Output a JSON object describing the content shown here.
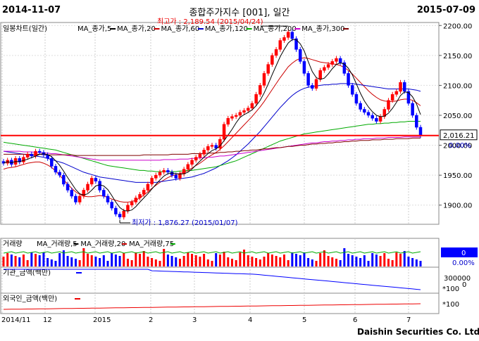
{
  "header": {
    "start_date": "2014-11-07",
    "title": "종합주가지수 [001], 일간",
    "end_date": "2015-07-09"
  },
  "footer": {
    "brand": "Daishin Securities Co. Ltd."
  },
  "colors": {
    "up": "#ff0000",
    "down": "#0000ff",
    "ma5": "#000000",
    "ma20": "#cc0000",
    "ma60": "#0000cc",
    "ma120": "#00aa00",
    "ma200": "#cc00cc",
    "ma300": "#800000",
    "support_line": "#ff0000"
  },
  "chart_data": [
    {
      "type": "candlestick",
      "title": "일봉차트(일간)",
      "legend": [
        "MA_종가,5",
        "MA_종가,20",
        "MA_종가,60",
        "MA_종가,120",
        "MA_종가,200",
        "MA_종가,300"
      ],
      "y_ticks": [
        "2200.00",
        "2150.00",
        "2100.00",
        "2050.00",
        "2000.00",
        "1950.00",
        "1900.00"
      ],
      "ylim": [
        1868,
        2205
      ],
      "current_value": "2,016.21",
      "current_change": "0.00%",
      "support_level": 2016.21,
      "high_annotation": "최고가 : 2,189.54 (2015/04/24)",
      "low_annotation": "최저가 : 1,876.27 (2015/01/07)",
      "x_ticks": [
        "2014/11",
        "12",
        "2015",
        "2",
        "3",
        "4",
        "5",
        "6",
        "7"
      ],
      "series_close": [
        1970,
        1975,
        1968,
        1978,
        1972,
        1980,
        1985,
        1982,
        1990,
        1988,
        1984,
        1978,
        1965,
        1955,
        1950,
        1935,
        1925,
        1915,
        1905,
        1915,
        1925,
        1935,
        1945,
        1940,
        1925,
        1915,
        1905,
        1895,
        1885,
        1880,
        1890,
        1900,
        1905,
        1912,
        1918,
        1925,
        1935,
        1945,
        1950,
        1955,
        1958,
        1955,
        1950,
        1945,
        1952,
        1960,
        1968,
        1975,
        1980,
        1985,
        1992,
        1998,
        2000,
        1995,
        2010,
        2035,
        2045,
        2048,
        2050,
        2055,
        2058,
        2062,
        2070,
        2085,
        2100,
        2120,
        2135,
        2150,
        2160,
        2175,
        2180,
        2189,
        2178,
        2160,
        2140,
        2120,
        2100,
        2095,
        2110,
        2125,
        2130,
        2135,
        2140,
        2145,
        2138,
        2120,
        2100,
        2085,
        2070,
        2060,
        2055,
        2050,
        2045,
        2040,
        2048,
        2060,
        2075,
        2085,
        2090,
        2105,
        2090,
        2070,
        2050,
        2030,
        2016.21
      ],
      "ma_series": {
        "ma20": [
          1960,
          1962,
          1963,
          1964,
          1966,
          1968,
          1970,
          1971,
          1972,
          1972,
          1970,
          1967,
          1963,
          1957,
          1950,
          1942,
          1935,
          1928,
          1922,
          1918,
          1915,
          1914,
          1914,
          1915,
          1916,
          1915,
          1913,
          1910,
          1908,
          1906,
          1905,
          1905,
          1906,
          1908,
          1912,
          1917,
          1922,
          1928,
          1933,
          1938,
          1942,
          1946,
          1949,
          1951,
          1953,
          1955,
          1958,
          1962,
          1966,
          1970,
          1975,
          1980,
          1984,
          1988,
          1993,
          1999,
          2006,
          2013,
          2020,
          2027,
          2034,
          2041,
          2048,
          2056,
          2064,
          2073,
          2083,
          2093,
          2103,
          2113,
          2122,
          2131,
          2137,
          2142,
          2145,
          2146,
          2145,
          2143,
          2141,
          2139,
          2138,
          2137,
          2136,
          2135,
          2133,
          2130,
          2125,
          2119,
          2112,
          2105,
          2098,
          2091,
          2085,
          2080,
          2076,
          2074,
          2073,
          2073,
          2074,
          2076,
          2077,
          2077,
          2075,
          2071,
          2066
        ],
        "ma60": [
          1990,
          1989,
          1988,
          1987,
          1986,
          1985,
          1984,
          1983,
          1982,
          1981,
          1980,
          1978,
          1976,
          1974,
          1972,
          1970,
          1967,
          1964,
          1961,
          1958,
          1955,
          1953,
          1951,
          1949,
          1947,
          1946,
          1945,
          1944,
          1943,
          1942,
          1941,
          1940,
          1939,
          1938,
          1938,
          1938,
          1938,
          1938,
          1938,
          1939,
          1940,
          1941,
          1942,
          1943,
          1944,
          1945,
          1946,
          1947,
          1949,
          1951,
          1953,
          1956,
          1959,
          1962,
          1966,
          1970,
          1974,
          1979,
          1984,
          1990,
          1996,
          2002,
          2009,
          2016,
          2023,
          2031,
          2039,
          2047,
          2055,
          2063,
          2070,
          2077,
          2083,
          2088,
          2092,
          2095,
          2097,
          2098,
          2099,
          2100,
          2101,
          2101,
          2102,
          2102,
          2103,
          2103,
          2103,
          2103,
          2102,
          2101,
          2100,
          2099,
          2098,
          2097,
          2096,
          2095,
          2094,
          2094,
          2094,
          2094,
          2094,
          2094,
          2093,
          2092,
          2090
        ],
        "ma120": [
          2005,
          2004,
          2003,
          2002,
          2001,
          2000,
          1999,
          1998,
          1997,
          1996,
          1995,
          1994,
          1993,
          1992,
          1990,
          1988,
          1986,
          1984,
          1982,
          1980,
          1978,
          1976,
          1974,
          1972,
          1970,
          1968,
          1966,
          1965,
          1964,
          1963,
          1962,
          1961,
          1960,
          1959,
          1958,
          1958,
          1957,
          1957,
          1956,
          1956,
          1956,
          1956,
          1956,
          1956,
          1957,
          1957,
          1958,
          1958,
          1959,
          1960,
          1961,
          1962,
          1963,
          1964,
          1966,
          1968,
          1970,
          1972,
          1974,
          1977,
          1980,
          1983,
          1986,
          1989,
          1992,
          1995,
          1998,
          2001,
          2004,
          2007,
          2009,
          2011,
          2013,
          2015,
          2017,
          2019,
          2020,
          2021,
          2022,
          2023,
          2024,
          2025,
          2026,
          2027,
          2028,
          2029,
          2030,
          2031,
          2032,
          2033,
          2034,
          2035,
          2035,
          2036,
          2036,
          2037,
          2037,
          2038,
          2038,
          2039,
          2039,
          2040,
          2040,
          2040,
          2040
        ],
        "ma200": [
          1990,
          1990,
          1990,
          1990,
          1990,
          1989,
          1989,
          1989,
          1988,
          1988,
          1987,
          1987,
          1986,
          1986,
          1985,
          1984,
          1983,
          1982,
          1981,
          1980,
          1979,
          1978,
          1977,
          1976,
          1975,
          1975,
          1975,
          1975,
          1975,
          1975,
          1975,
          1975,
          1975,
          1975,
          1975,
          1975,
          1975,
          1975,
          1975,
          1975,
          1976,
          1976,
          1976,
          1976,
          1977,
          1977,
          1977,
          1978,
          1978,
          1979,
          1979,
          1980,
          1980,
          1981,
          1982,
          1982,
          1983,
          1984,
          1985,
          1986,
          1987,
          1988,
          1989,
          1990,
          1991,
          1992,
          1993,
          1994,
          1995,
          1996,
          1997,
          1998,
          1999,
          2000,
          2001,
          2002,
          2003,
          2004,
          2004,
          2005,
          2006,
          2006,
          2007,
          2007,
          2008,
          2008,
          2009,
          2009,
          2010,
          2010,
          2011,
          2011,
          2011,
          2012,
          2012,
          2012,
          2013,
          2013,
          2013,
          2013,
          2014,
          2014,
          2014,
          2014,
          2014
        ],
        "ma300": [
          1985,
          1985,
          1985,
          1985,
          1985,
          1985,
          1985,
          1985,
          1985,
          1985,
          1984,
          1984,
          1984,
          1984,
          1984,
          1984,
          1984,
          1984,
          1983,
          1983,
          1983,
          1983,
          1983,
          1983,
          1983,
          1983,
          1983,
          1983,
          1983,
          1983,
          1983,
          1983,
          1983,
          1983,
          1983,
          1984,
          1984,
          1984,
          1984,
          1984,
          1984,
          1984,
          1985,
          1985,
          1985,
          1985,
          1985,
          1986,
          1986,
          1986,
          1986,
          1987,
          1987,
          1987,
          1988,
          1988,
          1989,
          1989,
          1990,
          1990,
          1991,
          1991,
          1992,
          1992,
          1993,
          1994,
          1994,
          1995,
          1996,
          1996,
          1997,
          1998,
          1998,
          1999,
          2000,
          2000,
          2001,
          2002,
          2002,
          2003,
          2003,
          2004,
          2004,
          2005,
          2005,
          2006,
          2006,
          2007,
          2007,
          2008,
          2008,
          2008,
          2009,
          2009,
          2009,
          2010,
          2010,
          2010,
          2011,
          2011,
          2011,
          2011,
          2012,
          2012,
          2012
        ]
      }
    },
    {
      "type": "bar",
      "title": "거래량",
      "legend": [
        "MA_거래량,5",
        "MA_거래량,20",
        "MA_거래량,75"
      ],
      "current_value": "0",
      "current_change": "0.00%"
    },
    {
      "type": "line",
      "title": "기관_금액(백만)",
      "y_ticks": [
        "300000",
        "0",
        "*100"
      ]
    },
    {
      "type": "line",
      "title": "외국인_금액(백만)",
      "y_ticks": [
        "*100"
      ]
    }
  ]
}
